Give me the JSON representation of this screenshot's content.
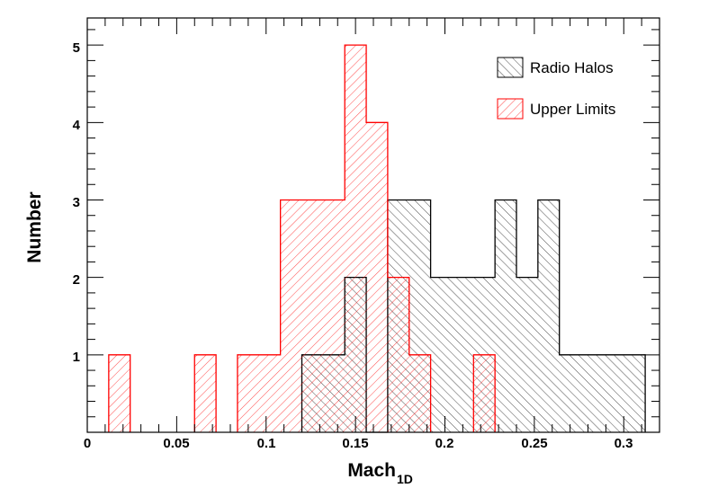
{
  "chart_data": {
    "type": "bar",
    "subtype": "histogram",
    "xlabel": "Mach",
    "xlabel_subscript": "1D",
    "ylabel": "Number",
    "xlim": [
      0,
      0.32
    ],
    "ylim": [
      0,
      5.35
    ],
    "x_ticks": [
      "0",
      "0.05",
      "0.1",
      "0.15",
      "0.2",
      "0.25",
      "0.3"
    ],
    "y_ticks": [
      "1",
      "2",
      "3",
      "4",
      "5"
    ],
    "legend_position": "top-right",
    "series": [
      {
        "name": "Radio Halos",
        "color": "#000000",
        "hatch": "backslash",
        "bins": [
          {
            "x0": 0.12,
            "x1": 0.132,
            "count": 1
          },
          {
            "x0": 0.132,
            "x1": 0.144,
            "count": 1
          },
          {
            "x0": 0.144,
            "x1": 0.156,
            "count": 2
          },
          {
            "x0": 0.156,
            "x1": 0.168,
            "count": 0
          },
          {
            "x0": 0.168,
            "x1": 0.18,
            "count": 3
          },
          {
            "x0": 0.18,
            "x1": 0.192,
            "count": 3
          },
          {
            "x0": 0.192,
            "x1": 0.204,
            "count": 2
          },
          {
            "x0": 0.204,
            "x1": 0.216,
            "count": 2
          },
          {
            "x0": 0.216,
            "x1": 0.228,
            "count": 2
          },
          {
            "x0": 0.228,
            "x1": 0.24,
            "count": 3
          },
          {
            "x0": 0.24,
            "x1": 0.252,
            "count": 2
          },
          {
            "x0": 0.252,
            "x1": 0.264,
            "count": 3
          },
          {
            "x0": 0.264,
            "x1": 0.276,
            "count": 1
          },
          {
            "x0": 0.276,
            "x1": 0.288,
            "count": 1
          },
          {
            "x0": 0.288,
            "x1": 0.3,
            "count": 1
          },
          {
            "x0": 0.3,
            "x1": 0.312,
            "count": 1
          }
        ]
      },
      {
        "name": "Upper Limits",
        "color": "#ff0000",
        "hatch": "slash",
        "bins": [
          {
            "x0": 0.012,
            "x1": 0.024,
            "count": 1
          },
          {
            "x0": 0.06,
            "x1": 0.072,
            "count": 1
          },
          {
            "x0": 0.084,
            "x1": 0.096,
            "count": 1
          },
          {
            "x0": 0.096,
            "x1": 0.108,
            "count": 1
          },
          {
            "x0": 0.108,
            "x1": 0.12,
            "count": 3
          },
          {
            "x0": 0.12,
            "x1": 0.132,
            "count": 3
          },
          {
            "x0": 0.132,
            "x1": 0.144,
            "count": 3
          },
          {
            "x0": 0.144,
            "x1": 0.156,
            "count": 5
          },
          {
            "x0": 0.156,
            "x1": 0.168,
            "count": 4
          },
          {
            "x0": 0.168,
            "x1": 0.18,
            "count": 2
          },
          {
            "x0": 0.18,
            "x1": 0.192,
            "count": 1
          },
          {
            "x0": 0.216,
            "x1": 0.228,
            "count": 1
          }
        ]
      }
    ]
  }
}
